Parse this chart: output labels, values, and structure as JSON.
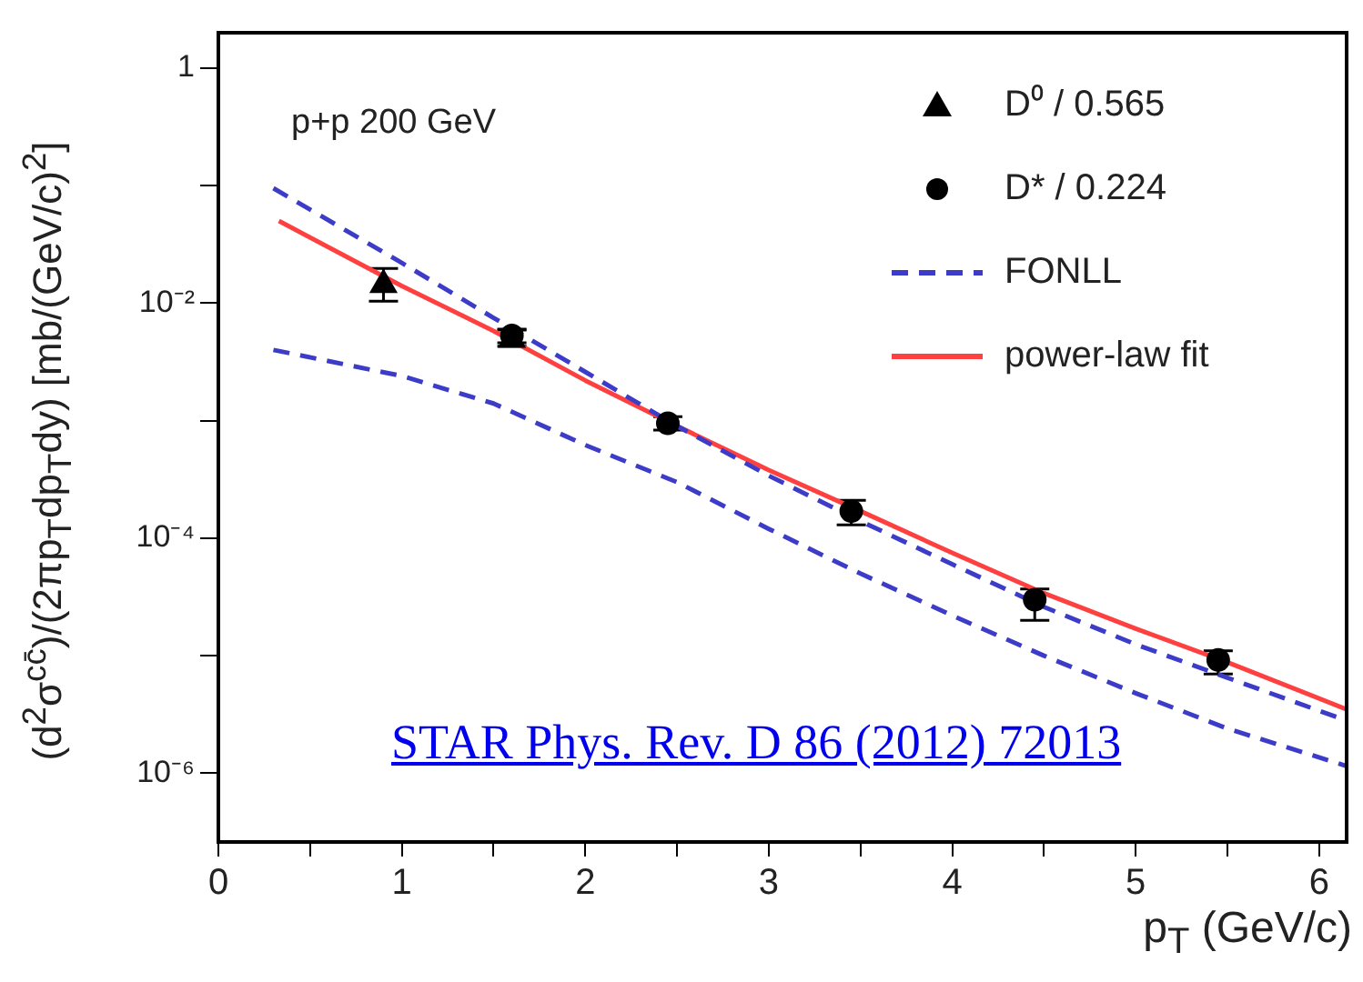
{
  "chart_data": {
    "type": "scatter",
    "xlabel": "p$_{T}$ (GeV/c)",
    "ylabel": "(d$^{2}$σ$^{cc̄}$)/(2πp$_{T}$dp$_{T}$dy) [mb/(GeV/c)$^{2}$]",
    "annotations": [
      "p+p 200 GeV",
      "STAR Phys. Rev. D 86 (2012) 72013"
    ],
    "log": "y",
    "grid": false,
    "legend": "top right",
    "xlim": [
      0,
      6.15
    ],
    "ylim": [
      2.6e-07,
      2
    ],
    "xticks": [
      0,
      {
        "value": 0.5,
        "label": null
      },
      1,
      {
        "value": 1.5,
        "label": null
      },
      2,
      {
        "value": 2.5,
        "label": null
      },
      3,
      {
        "value": 3.5,
        "label": null
      },
      4,
      {
        "value": 4.5,
        "label": null
      },
      5,
      {
        "value": 5.5,
        "label": null
      },
      6
    ],
    "yticks": [
      {
        "value": 1e-06,
        "label": "10⁻⁶"
      },
      {
        "value": 1e-05,
        "label": null
      },
      {
        "value": 0.0001,
        "label": "10⁻⁴"
      },
      {
        "value": 0.001,
        "label": null
      },
      {
        "value": 0.01,
        "label": "10⁻²"
      },
      {
        "value": 0.1,
        "label": null
      },
      1
    ],
    "series": [
      {
        "name": "D⁰ / 0.565",
        "type": "scatter",
        "marker": "triangle",
        "color": "#000000",
        "x": [
          0.9,
          1.6
        ],
        "values": [
          0.0143,
          0.0049
        ],
        "errors": [
          [
            0.0104,
            0.0197
          ],
          [
            0.0043,
            0.0059
          ]
        ]
      },
      {
        "name": "D* / 0.224",
        "type": "scatter",
        "marker": "circle",
        "color": "#000000",
        "x": [
          1.6,
          2.45,
          3.45,
          4.45,
          5.45
        ],
        "values": [
          0.0053,
          0.00095,
          0.00017,
          3e-05,
          9.2e-06
        ],
        "errors": [
          [
            0.0046,
            0.006
          ],
          [
            0.00083,
            0.00108
          ],
          [
            0.00013,
            0.00021
          ],
          [
            2e-05,
            3.7e-05
          ],
          [
            7e-06,
            1.1e-05
          ]
        ]
      },
      {
        "name": "FONLL",
        "type": "line",
        "line_style": "dashed",
        "marker": "none",
        "color": "#3c3cc8",
        "x": [
          0.3,
          1,
          1.5,
          2,
          2.5,
          3,
          3.5,
          4,
          4.5,
          5,
          5.5,
          6.15
        ],
        "values": [
          0.095,
          0.022,
          0.0075,
          0.0026,
          0.0009,
          0.00034,
          0.00014,
          6e-05,
          2.6e-05,
          1.25e-05,
          6.5e-06,
          2.8e-06
        ]
      },
      {
        "type": "line",
        "line_style": "dashed",
        "marker": "none",
        "color": "#3c3cc8",
        "x": [
          0.3,
          1,
          1.5,
          2,
          2.5,
          3,
          3.5,
          4,
          4.5,
          5,
          5.5,
          6.15
        ],
        "values": [
          0.004,
          0.0024,
          0.0014,
          0.00062,
          0.0003,
          0.00012,
          5e-05,
          2.2e-05,
          1e-05,
          4.8e-06,
          2.4e-06,
          1.15e-06
        ]
      },
      {
        "name": "power-law fit",
        "type": "line",
        "line_style": "solid",
        "marker": "none",
        "color": "#ff4040",
        "x": [
          0.33,
          1,
          1.5,
          2,
          2.5,
          3,
          3.5,
          4,
          4.5,
          5,
          5.5,
          6.15
        ],
        "values": [
          0.05,
          0.014,
          0.0058,
          0.0022,
          0.0009,
          0.00038,
          0.00017,
          7.5e-05,
          3.4e-05,
          1.7e-05,
          8.8e-06,
          3.5e-06
        ]
      }
    ]
  }
}
